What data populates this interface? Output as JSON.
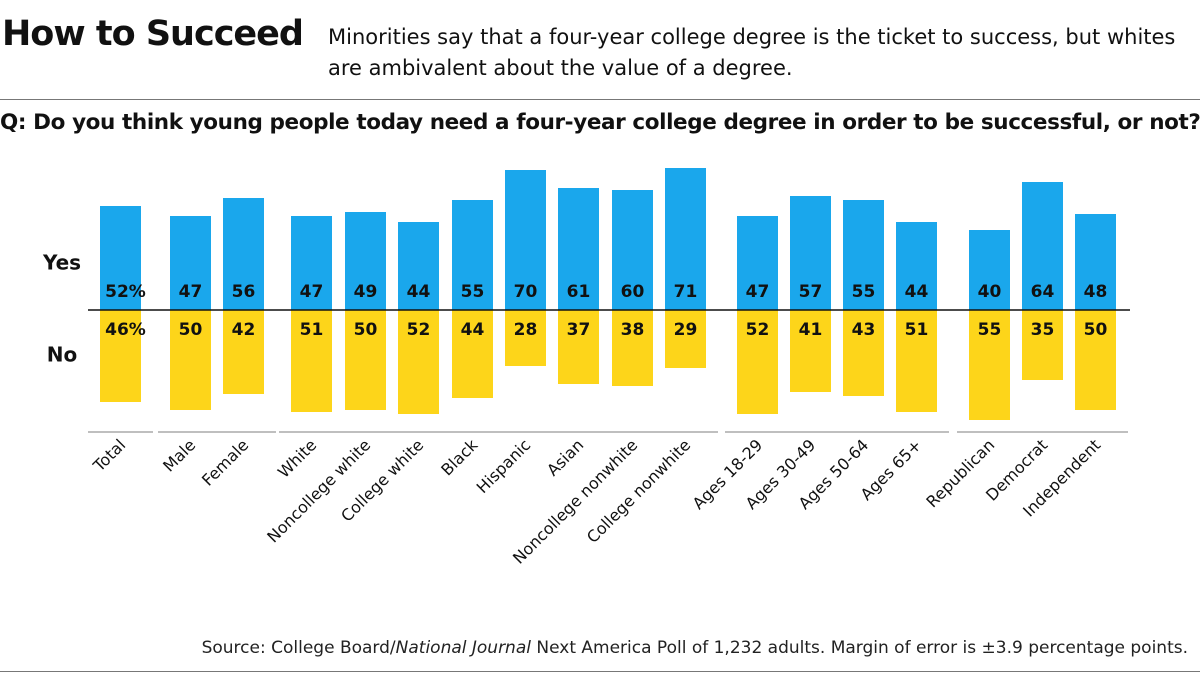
{
  "header": {
    "title": "How to Succeed",
    "subtitle": "Minorities say that a four-year college degree is the ticket to success, but whites are ambivalent about the value of a degree.",
    "question": "Q: Do you think young people today need a four-year college degree in order to be successful, or not?"
  },
  "source": {
    "pre": "Source: College Board/",
    "italic": "National Journal",
    "post": " Next America Poll of 1,232 adults. Margin of error is ±3.9 percentage points."
  },
  "chart_data": {
    "type": "bar",
    "categories": [
      "Total",
      "Male",
      "Female",
      "White",
      "Noncollege white",
      "College white",
      "Black",
      "Hispanic",
      "Asian",
      "Noncollege nonwhite",
      "College nonwhite",
      "Ages 18-29",
      "Ages 30-49",
      "Ages 50-64",
      "Ages 65+",
      "Republican",
      "Democrat",
      "Independent"
    ],
    "groups": [
      [
        0
      ],
      [
        1,
        2
      ],
      [
        3,
        4,
        5,
        6,
        7,
        8,
        9,
        10
      ],
      [
        11,
        12,
        13,
        14
      ],
      [
        15,
        16,
        17
      ]
    ],
    "series": [
      {
        "name": "Yes",
        "values": [
          52,
          47,
          56,
          47,
          49,
          44,
          55,
          70,
          61,
          60,
          71,
          47,
          57,
          55,
          44,
          40,
          64,
          48
        ],
        "labels": [
          "52%",
          "47",
          "56",
          "47",
          "49",
          "44",
          "55",
          "70",
          "61",
          "60",
          "71",
          "47",
          "57",
          "55",
          "44",
          "40",
          "64",
          "48"
        ],
        "color": "#1aa7ec",
        "direction": "up"
      },
      {
        "name": "No",
        "values": [
          46,
          50,
          42,
          51,
          50,
          52,
          44,
          28,
          37,
          38,
          29,
          52,
          41,
          43,
          51,
          55,
          35,
          50
        ],
        "labels": [
          "46%",
          "50",
          "42",
          "51",
          "50",
          "52",
          "44",
          "28",
          "37",
          "38",
          "29",
          "52",
          "41",
          "43",
          "51",
          "55",
          "35",
          "50"
        ],
        "color": "#fdd51a",
        "direction": "down"
      }
    ],
    "axis_color": "#111"
  }
}
